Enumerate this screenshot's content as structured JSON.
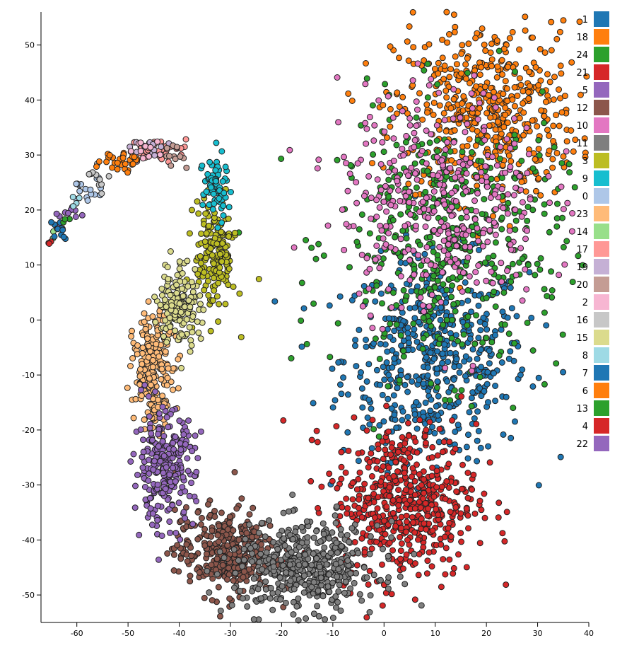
{
  "chart_data": {
    "type": "scatter",
    "title": "",
    "xlabel": "",
    "ylabel": "",
    "xlim": [
      -67,
      40
    ],
    "ylim": [
      -55,
      56
    ],
    "x_ticks": [
      -60,
      -50,
      -40,
      -30,
      -20,
      -10,
      0,
      10,
      20,
      30,
      40
    ],
    "y_ticks": [
      -50,
      -40,
      -30,
      -20,
      -10,
      0,
      10,
      20,
      30,
      40,
      50
    ],
    "grid": false,
    "legend": {
      "placement": "top-right"
    },
    "clusters": [
      {
        "name": "1",
        "color": "#1f77b4",
        "cx": 10,
        "cy": -7,
        "sx": 9,
        "sy": 9,
        "n": 520
      },
      {
        "name": "18",
        "color": "#ff7f0e",
        "cx": 20,
        "cy": 38,
        "sx": 9,
        "sy": 8,
        "n": 520
      },
      {
        "name": "24",
        "color": "#2ca02c",
        "cx": 13,
        "cy": 14,
        "sx": 11,
        "sy": 12,
        "n": 460
      },
      {
        "name": "21",
        "color": "#d62728",
        "cx": 4,
        "cy": -33,
        "sx": 7,
        "sy": 7,
        "n": 540
      },
      {
        "name": "5",
        "color": "#9467bd",
        "cx": -61,
        "cy": 19,
        "sx": 1.2,
        "sy": 1,
        "n": 10
      },
      {
        "name": "12",
        "color": "#8c564b",
        "cx": -31,
        "cy": -42,
        "sx": 5,
        "sy": 4,
        "n": 340
      },
      {
        "name": "10",
        "color": "#e377c2",
        "cx": 11,
        "cy": 22,
        "sx": 10,
        "sy": 10,
        "n": 380
      },
      {
        "name": "11",
        "color": "#7f7f7f",
        "cx": -15,
        "cy": -45,
        "sx": 7,
        "sy": 4,
        "n": 460
      },
      {
        "name": "3",
        "color": "#bcbd22",
        "cx": -33,
        "cy": 12,
        "sx": 2,
        "sy": 5,
        "n": 180
      },
      {
        "name": "9",
        "color": "#17becf",
        "cx": -33,
        "cy": 24,
        "sx": 1.2,
        "sy": 3,
        "n": 70
      },
      {
        "name": "0",
        "color": "#aec7e8",
        "cx": -58,
        "cy": 23,
        "sx": 1.5,
        "sy": 1.5,
        "n": 16
      },
      {
        "name": "23",
        "color": "#ffbb78",
        "cx": -45,
        "cy": -9,
        "sx": 2,
        "sy": 5,
        "n": 220
      },
      {
        "name": "14",
        "color": "#98df8a",
        "cx": -64,
        "cy": 16,
        "sx": 0.5,
        "sy": 0.5,
        "n": 2
      },
      {
        "name": "17",
        "color": "#ff9896",
        "cx": -44,
        "cy": 31,
        "sx": 3,
        "sy": 1,
        "n": 40
      },
      {
        "name": "19",
        "color": "#c5b0d5",
        "cx": -47,
        "cy": 31,
        "sx": 2,
        "sy": 0.8,
        "n": 12
      },
      {
        "name": "20",
        "color": "#c49c94",
        "cx": -40,
        "cy": 30,
        "sx": 2,
        "sy": 1,
        "n": 12
      },
      {
        "name": "2",
        "color": "#f7b6d2",
        "cx": -46,
        "cy": 31,
        "sx": 2,
        "sy": 1,
        "n": 10
      },
      {
        "name": "16",
        "color": "#c7c7c7",
        "cx": -56,
        "cy": 26,
        "sx": 1.2,
        "sy": 1.2,
        "n": 10
      },
      {
        "name": "15",
        "color": "#dbdb8d",
        "cx": -40,
        "cy": 3,
        "sx": 2,
        "sy": 4,
        "n": 160
      },
      {
        "name": "8",
        "color": "#9edae5",
        "cx": -60,
        "cy": 21,
        "sx": 1,
        "sy": 1,
        "n": 4
      },
      {
        "name": "7",
        "color": "#1f77b4",
        "cx": -63.5,
        "cy": 16.5,
        "sx": 0.8,
        "sy": 0.8,
        "n": 12
      },
      {
        "name": "6",
        "color": "#ff7f0e",
        "cx": -52,
        "cy": 29,
        "sx": 2,
        "sy": 1,
        "n": 30
      },
      {
        "name": "13",
        "color": "#2ca02c",
        "cx": -62,
        "cy": 18,
        "sx": 0.5,
        "sy": 0.5,
        "n": 3
      },
      {
        "name": "4",
        "color": "#d62728",
        "cx": -65.5,
        "cy": 14.5,
        "sx": 0.4,
        "sy": 0.4,
        "n": 3
      },
      {
        "name": "22",
        "color": "#9467bd",
        "cx": -43,
        "cy": -27,
        "sx": 3,
        "sy": 5,
        "n": 260
      }
    ]
  }
}
